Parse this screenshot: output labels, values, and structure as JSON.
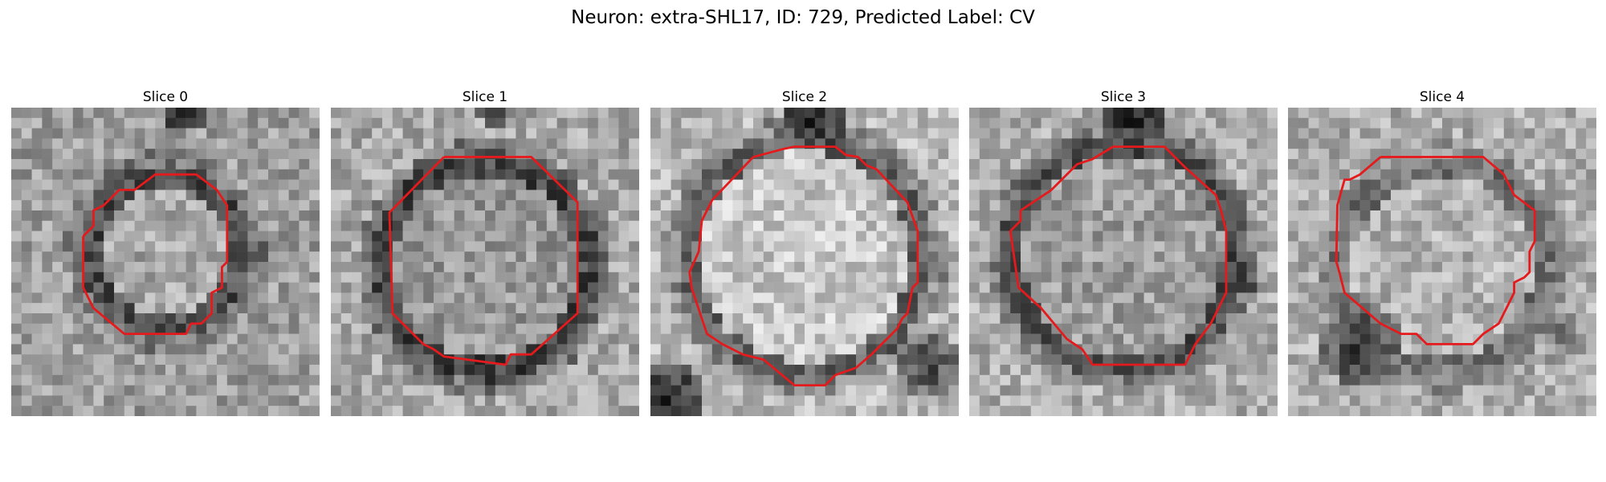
{
  "figure": {
    "title": "Neuron: extra-SHL17, ID: 729, Predicted Label: CV"
  },
  "contour_color": "#e41a1c",
  "slices": [
    {
      "title": "Slice 0",
      "size": 30,
      "seed": 11,
      "blob": {
        "cx": 15,
        "cy": 14,
        "r": 7.5,
        "inner": 0.66,
        "ring": 0.3,
        "bg": 0.62
      },
      "dark_spots": [
        [
          17,
          0,
          2.5,
          0.08
        ]
      ]
    },
    {
      "title": "Slice 1",
      "size": 30,
      "seed": 23,
      "blob": {
        "cx": 15,
        "cy": 15.5,
        "r": 10.2,
        "inner": 0.6,
        "ring": 0.28,
        "bg": 0.66
      },
      "dark_spots": [
        [
          16,
          0,
          2.0,
          0.25
        ]
      ]
    },
    {
      "title": "Slice 2",
      "size": 30,
      "seed": 37,
      "blob": {
        "cx": 15,
        "cy": 14.5,
        "r": 11.5,
        "inner": 0.78,
        "ring": 0.4,
        "bg": 0.72
      },
      "dark_spots": [
        [
          16,
          1,
          3.5,
          0.12
        ],
        [
          2,
          28,
          3.0,
          0.15
        ],
        [
          27,
          25,
          3.5,
          0.25
        ]
      ]
    },
    {
      "title": "Slice 3",
      "size": 30,
      "seed": 53,
      "blob": {
        "cx": 15,
        "cy": 14.5,
        "r": 11.0,
        "inner": 0.62,
        "ring": 0.32,
        "bg": 0.68
      },
      "dark_spots": [
        [
          16,
          1,
          3.0,
          0.12
        ],
        [
          26,
          16,
          2.5,
          0.15
        ]
      ]
    },
    {
      "title": "Slice 4",
      "size": 30,
      "seed": 71,
      "blob": {
        "cx": 15,
        "cy": 15.5,
        "r": 10.0,
        "inner": 0.7,
        "ring": 0.45,
        "bg": 0.68
      },
      "dark_spots": [
        [
          7,
          23,
          4.0,
          0.2
        ],
        [
          26,
          22,
          3.0,
          0.45
        ]
      ]
    }
  ]
}
